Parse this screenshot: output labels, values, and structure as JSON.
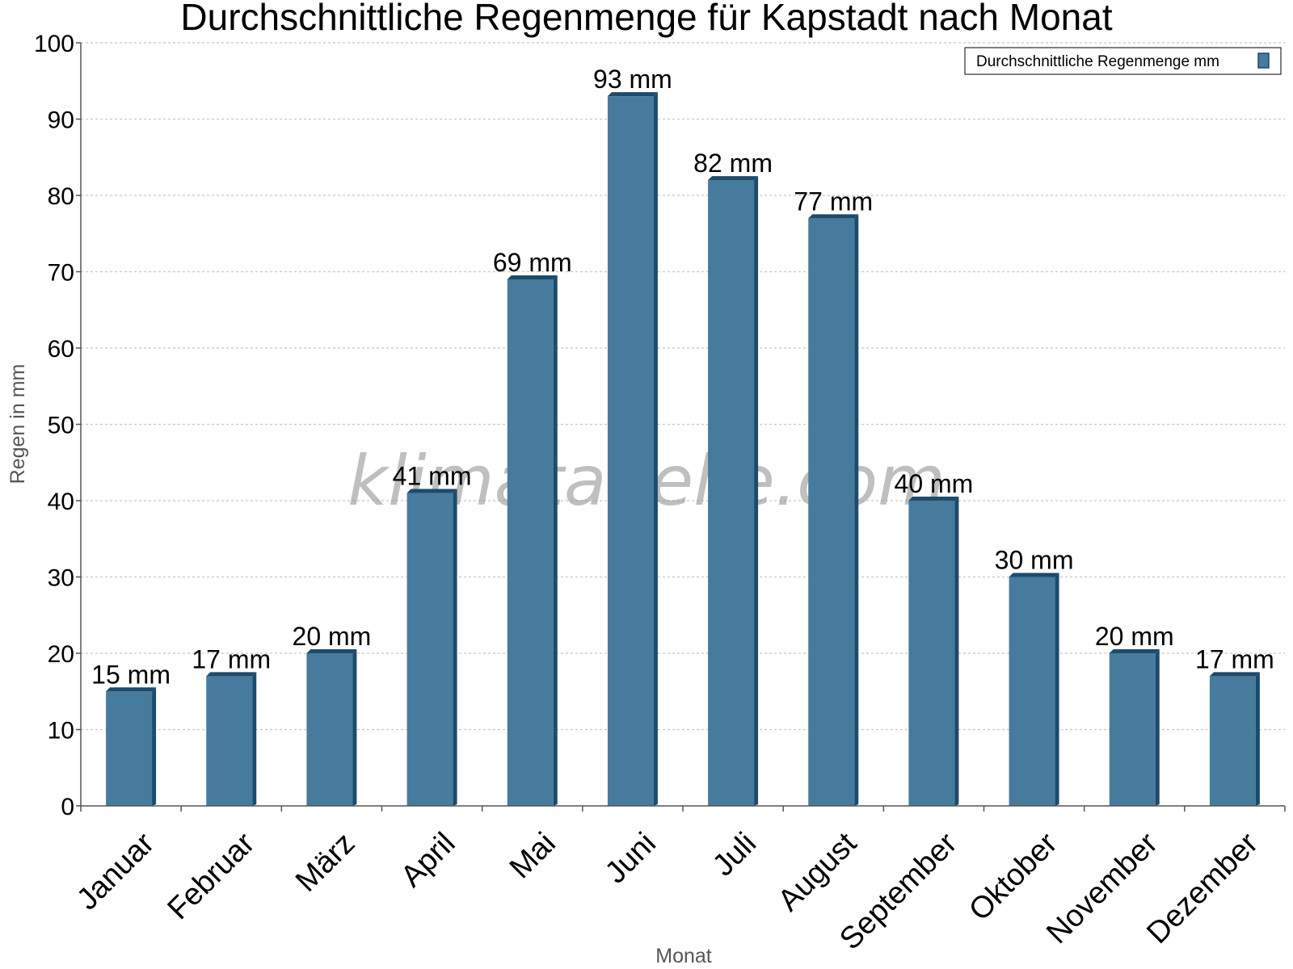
{
  "chart_data": {
    "type": "bar",
    "title": "Durchschnittliche Regenmenge für Kapstadt nach Monat",
    "xlabel": "Monat",
    "ylabel": "Regen in mm",
    "ylim": [
      0,
      100
    ],
    "ytick_step": 10,
    "grid": true,
    "legend": {
      "position": "top-right",
      "label": "Durchschnittliche Regenmenge mm"
    },
    "unit_suffix": " mm",
    "watermark": "klimatabelle.com",
    "categories": [
      "Januar",
      "Februar",
      "März",
      "April",
      "Mai",
      "Juni",
      "Juli",
      "August",
      "September",
      "Oktober",
      "November",
      "Dezember"
    ],
    "series": [
      {
        "name": "Durchschnittliche Regenmenge mm",
        "values": [
          15,
          17,
          20,
          41,
          69,
          93,
          82,
          77,
          40,
          30,
          20,
          17
        ]
      }
    ],
    "colors": {
      "bar_front": "#467b9e",
      "bar_side": "#1d4b6b",
      "bar_top": "#1d4b6b",
      "grid": "#c8c8c8",
      "axis": "#555555"
    }
  }
}
